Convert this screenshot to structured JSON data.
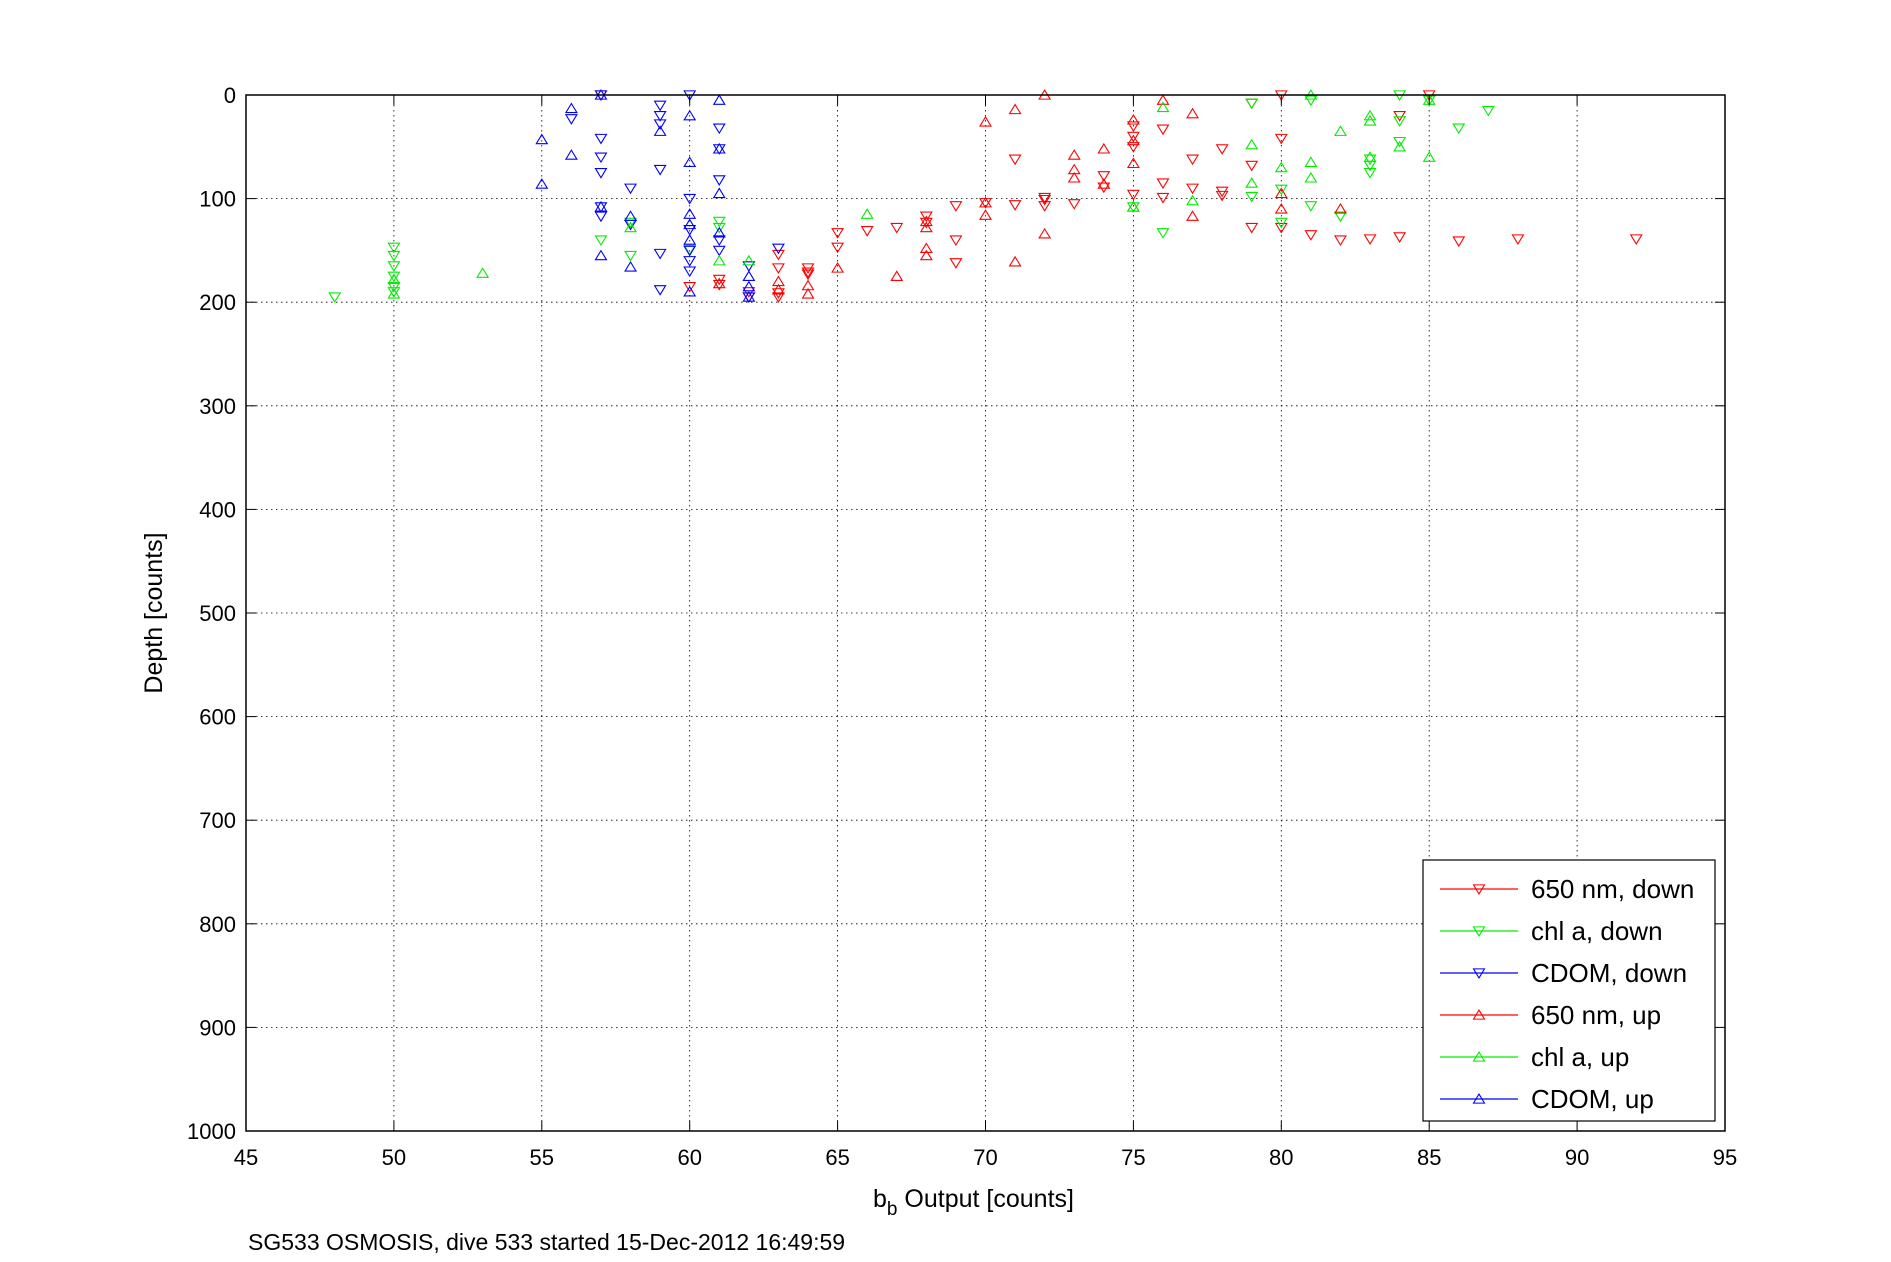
{
  "chart_data": {
    "type": "scatter",
    "xlabel_main": "b",
    "xlabel_sub": "b",
    "xlabel_rest": " Output [counts]",
    "ylabel": "Depth [counts]",
    "footer": "SG533 OSMOSIS, dive 533 started 15-Dec-2012 16:49:59",
    "xlim": [
      45,
      95
    ],
    "ylim": [
      0,
      1000
    ],
    "y_reversed": true,
    "grid": true,
    "legend_position": "bottom-right",
    "xticks": [
      "45",
      "50",
      "55",
      "60",
      "65",
      "70",
      "75",
      "80",
      "85",
      "90",
      "95"
    ],
    "yticks": [
      "0",
      "100",
      "200",
      "300",
      "400",
      "500",
      "600",
      "700",
      "800",
      "900",
      "1000"
    ],
    "series": [
      {
        "name": "650 nm, down",
        "color": "#ff0000",
        "marker": "triangle-down",
        "points": [
          [
            92,
            139
          ],
          [
            88,
            139
          ],
          [
            86,
            141
          ],
          [
            84,
            137
          ],
          [
            83,
            139
          ],
          [
            82,
            140
          ],
          [
            81,
            135
          ],
          [
            80,
            128
          ],
          [
            79,
            128
          ],
          [
            78,
            93
          ],
          [
            78,
            97
          ],
          [
            77,
            90
          ],
          [
            76,
            99
          ],
          [
            75,
            96
          ],
          [
            74,
            89
          ],
          [
            73,
            105
          ],
          [
            72,
            99
          ],
          [
            72,
            107
          ],
          [
            72,
            101
          ],
          [
            71,
            106
          ],
          [
            70,
            104
          ],
          [
            69,
            107
          ],
          [
            68,
            117
          ],
          [
            68,
            123
          ],
          [
            67,
            128
          ],
          [
            66,
            131
          ],
          [
            65,
            133
          ],
          [
            64,
            167
          ],
          [
            64,
            173
          ],
          [
            63,
            167
          ],
          [
            63,
            191
          ],
          [
            63,
            195
          ],
          [
            62,
            190
          ],
          [
            62,
            195
          ],
          [
            61,
            178
          ],
          [
            61,
            183
          ],
          [
            60,
            185
          ],
          [
            57,
            0
          ],
          [
            80,
            0
          ],
          [
            84,
            20
          ],
          [
            85,
            0
          ],
          [
            78,
            52
          ],
          [
            79,
            68
          ],
          [
            79,
            8
          ],
          [
            80,
            42
          ],
          [
            77,
            62
          ],
          [
            76,
            33
          ],
          [
            75,
            30
          ],
          [
            75,
            40
          ],
          [
            75,
            50
          ],
          [
            76,
            85
          ],
          [
            74,
            78
          ],
          [
            71,
            62
          ],
          [
            69,
            162
          ],
          [
            69,
            140
          ],
          [
            65,
            147
          ],
          [
            64,
            171
          ],
          [
            63,
            154
          ]
        ]
      },
      {
        "name": "chl a, down",
        "color": "#00ee00",
        "marker": "triangle-down",
        "points": [
          [
            48,
            195
          ],
          [
            50,
            147
          ],
          [
            50,
            155
          ],
          [
            50,
            165
          ],
          [
            50,
            175
          ],
          [
            50,
            185
          ],
          [
            50,
            190
          ],
          [
            57,
            140
          ],
          [
            58,
            123
          ],
          [
            58,
            155
          ],
          [
            60,
            149
          ],
          [
            61,
            122
          ],
          [
            61,
            128
          ],
          [
            75,
            108
          ],
          [
            76,
            133
          ],
          [
            79,
            8
          ],
          [
            79,
            98
          ],
          [
            80,
            123
          ],
          [
            80,
            91
          ],
          [
            81,
            5
          ],
          [
            81,
            107
          ],
          [
            82,
            117
          ],
          [
            83,
            75
          ],
          [
            83,
            62
          ],
          [
            84,
            25
          ],
          [
            84,
            45
          ],
          [
            85,
            5
          ],
          [
            86,
            32
          ],
          [
            87,
            15
          ],
          [
            84,
            0
          ],
          [
            83,
            68
          ]
        ]
      },
      {
        "name": "CDOM, down",
        "color": "#0000ff",
        "marker": "triangle-down",
        "points": [
          [
            56,
            23
          ],
          [
            57,
            0
          ],
          [
            57,
            42
          ],
          [
            57,
            60
          ],
          [
            57,
            75
          ],
          [
            57,
            108
          ],
          [
            57,
            117
          ],
          [
            58,
            90
          ],
          [
            58,
            125
          ],
          [
            59,
            10
          ],
          [
            59,
            20
          ],
          [
            59,
            28
          ],
          [
            59,
            72
          ],
          [
            59,
            153
          ],
          [
            59,
            188
          ],
          [
            60,
            0
          ],
          [
            60,
            100
          ],
          [
            60,
            130
          ],
          [
            60,
            150
          ],
          [
            60,
            160
          ],
          [
            60,
            170
          ],
          [
            61,
            32
          ],
          [
            61,
            52
          ],
          [
            61,
            82
          ],
          [
            61,
            140
          ],
          [
            61,
            150
          ],
          [
            62,
            165
          ],
          [
            62,
            195
          ],
          [
            63,
            148
          ]
        ]
      },
      {
        "name": "650 nm, up",
        "color": "#ff0000",
        "marker": "triangle-up",
        "points": [
          [
            61,
            182
          ],
          [
            63,
            180
          ],
          [
            63,
            188
          ],
          [
            64,
            184
          ],
          [
            64,
            192
          ],
          [
            65,
            167
          ],
          [
            67,
            175
          ],
          [
            68,
            122
          ],
          [
            68,
            128
          ],
          [
            68,
            148
          ],
          [
            68,
            155
          ],
          [
            70,
            26
          ],
          [
            70,
            104
          ],
          [
            70,
            116
          ],
          [
            71,
            14
          ],
          [
            71,
            161
          ],
          [
            72,
            0
          ],
          [
            72,
            134
          ],
          [
            73,
            58
          ],
          [
            73,
            72
          ],
          [
            73,
            80
          ],
          [
            74,
            52
          ],
          [
            74,
            86
          ],
          [
            75,
            108
          ],
          [
            75,
            66
          ],
          [
            75,
            44
          ],
          [
            75,
            24
          ],
          [
            76,
            5
          ],
          [
            77,
            117
          ],
          [
            77,
            18
          ],
          [
            80,
            95
          ],
          [
            80,
            110
          ],
          [
            82,
            110
          ]
        ]
      },
      {
        "name": "chl a, up",
        "color": "#00ee00",
        "marker": "triangle-up",
        "points": [
          [
            50,
            178
          ],
          [
            50,
            192
          ],
          [
            53,
            172
          ],
          [
            58,
            128
          ],
          [
            61,
            160
          ],
          [
            62,
            160
          ],
          [
            66,
            115
          ],
          [
            75,
            108
          ],
          [
            76,
            12
          ],
          [
            77,
            102
          ],
          [
            79,
            48
          ],
          [
            79,
            85
          ],
          [
            80,
            70
          ],
          [
            81,
            0
          ],
          [
            81,
            65
          ],
          [
            81,
            80
          ],
          [
            82,
            35
          ],
          [
            83,
            20
          ],
          [
            83,
            25
          ],
          [
            83,
            60
          ],
          [
            84,
            50
          ],
          [
            85,
            60
          ],
          [
            85,
            5
          ]
        ]
      },
      {
        "name": "CDOM, up",
        "color": "#0000ff",
        "marker": "triangle-up",
        "points": [
          [
            55,
            43
          ],
          [
            55,
            86
          ],
          [
            56,
            13
          ],
          [
            56,
            58
          ],
          [
            57,
            0
          ],
          [
            57,
            108
          ],
          [
            57,
            155
          ],
          [
            58,
            117
          ],
          [
            58,
            166
          ],
          [
            59,
            35
          ],
          [
            60,
            20
          ],
          [
            60,
            65
          ],
          [
            60,
            115
          ],
          [
            60,
            125
          ],
          [
            60,
            140
          ],
          [
            60,
            190
          ],
          [
            61,
            5
          ],
          [
            61,
            52
          ],
          [
            61,
            95
          ],
          [
            61,
            133
          ],
          [
            62,
            175
          ],
          [
            62,
            185
          ],
          [
            62,
            195
          ]
        ]
      }
    ]
  }
}
